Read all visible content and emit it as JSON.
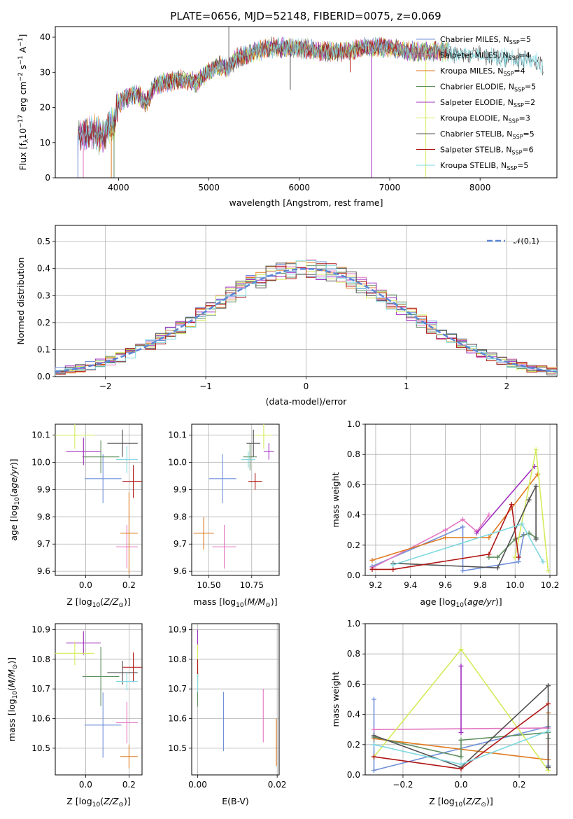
{
  "figure": {
    "title": "PLATE=0656, MJD=52148, FIBERID=0075, z=0.069"
  },
  "colors": {
    "chabrier_miles": "#6f8fd8",
    "salpeter_miles": "#e377c2",
    "kroupa_miles": "#e07a20",
    "chabrier_elodie": "#5e8f5e",
    "salpeter_elodie": "#a02fc0",
    "kroupa_elodie": "#d4ea5a",
    "chabrier_stelib": "#505050",
    "salpeter_stelib": "#b01515",
    "kroupa_stelib": "#80d8e0",
    "normal_curve": "#5b86d6"
  },
  "chart_data": [
    {
      "id": "spectrum",
      "type": "line",
      "xlabel": "wavelength [Angstrom, rest frame]",
      "ylabel": "Flux [f_λ10^-17 erg cm^-2 s^-1 A^-1]",
      "xlim": [
        3300,
        8850
      ],
      "ylim": [
        0,
        43
      ],
      "xticks": [
        "4000",
        "5000",
        "6000",
        "7000",
        "8000"
      ],
      "yticks": [
        "0",
        "10",
        "20",
        "30",
        "40"
      ],
      "legend_position": "top-right",
      "series": [
        {
          "name": "Chabrier MILES, N",
          "sub": "SSP",
          "suffix": "=5",
          "color_key": "chabrier_miles"
        },
        {
          "name": "Salpeter MILES, N",
          "sub": "SSP",
          "suffix": "=4",
          "color_key": "salpeter_miles"
        },
        {
          "name": "Kroupa MILES, N",
          "sub": "SSP",
          "suffix": "=4",
          "color_key": "kroupa_miles"
        },
        {
          "name": "Chabrier ELODIE, N",
          "sub": "SSP",
          "suffix": "=5",
          "color_key": "chabrier_elodie"
        },
        {
          "name": "Salpeter ELODIE, N",
          "sub": "SSP",
          "suffix": "=2",
          "color_key": "salpeter_elodie"
        },
        {
          "name": "Kroupa ELODIE, N",
          "sub": "SSP",
          "suffix": "=3",
          "color_key": "kroupa_elodie"
        },
        {
          "name": "Chabrier STELIB, N",
          "sub": "SSP",
          "suffix": "=5",
          "color_key": "chabrier_stelib"
        },
        {
          "name": "Salpeter STELIB, N",
          "sub": "SSP",
          "suffix": "=6",
          "color_key": "salpeter_stelib"
        },
        {
          "name": "Kroupa STELIB, N",
          "sub": "SSP",
          "suffix": "=5",
          "color_key": "kroupa_stelib"
        }
      ],
      "continuum": [
        [
          3550,
          12
        ],
        [
          3700,
          13
        ],
        [
          3850,
          12
        ],
        [
          3950,
          16
        ],
        [
          4000,
          21
        ],
        [
          4100,
          23
        ],
        [
          4200,
          24
        ],
        [
          4300,
          21
        ],
        [
          4400,
          26
        ],
        [
          4500,
          27
        ],
        [
          4700,
          28
        ],
        [
          4860,
          27
        ],
        [
          5000,
          30
        ],
        [
          5100,
          32
        ],
        [
          5200,
          31
        ],
        [
          5300,
          34
        ],
        [
          5500,
          36
        ],
        [
          5700,
          37
        ],
        [
          5900,
          37
        ],
        [
          6000,
          37
        ],
        [
          6200,
          36
        ],
        [
          6400,
          36
        ],
        [
          6563,
          36
        ],
        [
          6700,
          37
        ],
        [
          7000,
          37
        ],
        [
          7200,
          36
        ],
        [
          7400,
          36
        ],
        [
          7600,
          36
        ],
        [
          7800,
          35
        ],
        [
          8000,
          35
        ],
        [
          8200,
          34
        ],
        [
          8400,
          34
        ],
        [
          8600,
          33
        ],
        [
          8700,
          32
        ]
      ],
      "starts": [
        3550,
        3550,
        3550,
        3550,
        3550,
        3900,
        3550,
        3550,
        3550
      ],
      "ends": [
        7650,
        7650,
        7650,
        7650,
        7650,
        7650,
        8700,
        7650,
        8700
      ],
      "drops": [
        {
          "x": 3550,
          "to": 0
        },
        {
          "x": 3610,
          "to": 0
        },
        {
          "x": 3920,
          "to": 0
        },
        {
          "x": 3950,
          "to": 0
        },
        {
          "x": 6800,
          "to": 0
        },
        {
          "x": 7400,
          "to": 0
        },
        {
          "x": 5900,
          "to": 25
        },
        {
          "x": 6563,
          "to": 30
        }
      ],
      "spike": {
        "x": 5220,
        "to": 43
      }
    },
    {
      "id": "residuals",
      "type": "bar",
      "xlabel": "(data-model)/error",
      "ylabel": "Normed distribution",
      "xlim": [
        -2.5,
        2.5
      ],
      "ylim": [
        0,
        0.56
      ],
      "xticks": [
        -2,
        -1,
        0,
        1,
        2
      ],
      "xtick_labels": [
        "−2",
        "−1",
        "0",
        "1",
        "2"
      ],
      "yticks": [
        "0.0",
        "0.1",
        "0.2",
        "0.3",
        "0.4",
        "0.5"
      ],
      "bin_width": 0.1,
      "legend_label": "𝒩(0,1)",
      "legend_position": "top-right"
    },
    {
      "id": "age_vs_Z",
      "type": "scatter",
      "xlabel": "Z [log₁₀(Z/Z☉)]",
      "ylabel": "age [log₁₀(age/yr)]",
      "xlim": [
        -0.14,
        0.26
      ],
      "ylim": [
        9.585,
        10.14
      ],
      "xticks": [
        "0.0",
        "0.2"
      ],
      "yticks": [
        "9.6",
        "9.7",
        "9.8",
        "9.9",
        "10.0",
        "10.1"
      ],
      "points": [
        {
          "x": 0.08,
          "xerr": 0.085,
          "y": 9.94,
          "yerr": 0.09,
          "color_key": "chabrier_miles"
        },
        {
          "x": 0.19,
          "xerr": 0.05,
          "y": 9.69,
          "yerr": 0.08,
          "color_key": "salpeter_miles"
        },
        {
          "x": 0.2,
          "xerr": 0.04,
          "y": 9.74,
          "yerr": 0.15,
          "color_key": "kroupa_miles"
        },
        {
          "x": 0.07,
          "xerr": 0.085,
          "y": 10.02,
          "yerr": 0.06,
          "color_key": "chabrier_elodie"
        },
        {
          "x": -0.01,
          "xerr": 0.08,
          "y": 10.04,
          "yerr": 0.05,
          "color_key": "salpeter_elodie"
        },
        {
          "x": -0.05,
          "xerr": 0.09,
          "y": 10.1,
          "yerr": 0.05,
          "color_key": "kroupa_elodie"
        },
        {
          "x": 0.17,
          "xerr": 0.07,
          "y": 10.07,
          "yerr": 0.05,
          "color_key": "chabrier_stelib"
        },
        {
          "x": 0.22,
          "xerr": 0.05,
          "y": 9.93,
          "yerr": 0.06,
          "color_key": "salpeter_stelib"
        },
        {
          "x": 0.19,
          "xerr": 0.05,
          "y": 10.01,
          "yerr": 0.05,
          "color_key": "kroupa_stelib"
        }
      ]
    },
    {
      "id": "age_vs_mass",
      "type": "scatter",
      "xlabel": "mass [log₁₀(M/M☉)]",
      "ylabel": "",
      "xlim": [
        10.4,
        10.91
      ],
      "ylim": [
        9.585,
        10.14
      ],
      "xticks": [
        "10.50",
        "10.75"
      ],
      "yticks": [
        "9.6",
        "9.7",
        "9.8",
        "9.9",
        "10.0",
        "10.1"
      ],
      "points": [
        {
          "x": 10.58,
          "xerr": 0.08,
          "y": 9.94,
          "yerr": 0.09,
          "color_key": "chabrier_miles"
        },
        {
          "x": 10.59,
          "xerr": 0.07,
          "y": 9.69,
          "yerr": 0.08,
          "color_key": "salpeter_miles"
        },
        {
          "x": 10.47,
          "xerr": 0.06,
          "y": 9.74,
          "yerr": 0.06,
          "color_key": "kroupa_miles"
        },
        {
          "x": 10.74,
          "xerr": 0.04,
          "y": 10.02,
          "yerr": 0.05,
          "color_key": "chabrier_elodie"
        },
        {
          "x": 10.85,
          "xerr": 0.03,
          "y": 10.04,
          "yerr": 0.03,
          "color_key": "salpeter_elodie"
        },
        {
          "x": 10.82,
          "xerr": 0.05,
          "y": 10.1,
          "yerr": 0.05,
          "color_key": "kroupa_elodie"
        },
        {
          "x": 10.76,
          "xerr": 0.04,
          "y": 10.07,
          "yerr": 0.05,
          "color_key": "chabrier_stelib"
        },
        {
          "x": 10.77,
          "xerr": 0.04,
          "y": 9.93,
          "yerr": 0.03,
          "color_key": "salpeter_stelib"
        },
        {
          "x": 10.73,
          "xerr": 0.04,
          "y": 10.01,
          "yerr": 0.03,
          "color_key": "kroupa_stelib"
        }
      ]
    },
    {
      "id": "weight_vs_age",
      "type": "line",
      "xlabel": "age [log₁₀(age/yr)]",
      "ylabel": "mass weight",
      "xlim": [
        9.14,
        10.24
      ],
      "ylim": [
        0,
        1
      ],
      "xticks": [
        "9.2",
        "9.4",
        "9.6",
        "9.8",
        "10.0",
        "10.2"
      ],
      "yticks": [
        "0.0",
        "0.2",
        "0.4",
        "0.6",
        "0.8",
        "1.0"
      ],
      "series": [
        {
          "color_key": "chabrier_miles",
          "x": [
            9.18,
            9.7,
            9.7,
            10.02,
            10.05
          ],
          "y": [
            0.06,
            0.32,
            0.03,
            0.09,
            0.27
          ]
        },
        {
          "color_key": "salpeter_miles",
          "x": [
            9.18,
            9.6,
            9.7,
            9.78,
            9.85
          ],
          "y": [
            0.05,
            0.3,
            0.37,
            0.29,
            0.4
          ]
        },
        {
          "color_key": "kroupa_miles",
          "x": [
            9.18,
            9.6,
            9.85,
            10.13
          ],
          "y": [
            0.1,
            0.25,
            0.25,
            0.67
          ]
        },
        {
          "color_key": "chabrier_elodie",
          "x": [
            9.85,
            9.9,
            10.0,
            10.08,
            10.12
          ],
          "y": [
            0.12,
            0.12,
            0.24,
            0.28,
            0.25
          ]
        },
        {
          "color_key": "salpeter_elodie",
          "x": [
            9.78,
            10.11
          ],
          "y": [
            0.28,
            0.72
          ]
        },
        {
          "color_key": "kroupa_elodie",
          "x": [
            10.0,
            10.12,
            10.19
          ],
          "y": [
            0.12,
            0.83,
            0.03
          ]
        },
        {
          "color_key": "chabrier_stelib",
          "x": [
            9.3,
            9.9,
            10.08,
            10.12,
            10.12
          ],
          "y": [
            0.08,
            0.05,
            0.5,
            0.59,
            0.24
          ]
        },
        {
          "color_key": "salpeter_stelib",
          "x": [
            9.18,
            9.3,
            9.85,
            9.98,
            10.02
          ],
          "y": [
            0.04,
            0.04,
            0.14,
            0.47,
            0.12
          ]
        },
        {
          "color_key": "kroupa_stelib",
          "x": [
            9.3,
            10.04,
            10.16
          ],
          "y": [
            0.07,
            0.34,
            0.09
          ]
        }
      ]
    },
    {
      "id": "mass_vs_Z",
      "type": "scatter",
      "xlabel": "Z [log₁₀(Z/Z☉)]",
      "ylabel": "mass [log₁₀(M/M☉)]",
      "xlim": [
        -0.14,
        0.26
      ],
      "ylim": [
        10.41,
        10.92
      ],
      "xticks": [
        "0.0",
        "0.2"
      ],
      "yticks": [
        "10.5",
        "10.6",
        "10.7",
        "10.8",
        "10.9"
      ],
      "points": [
        {
          "x": 0.08,
          "xerr": 0.085,
          "y": 10.578,
          "yerr": 0.11,
          "color_key": "chabrier_miles"
        },
        {
          "x": 0.19,
          "xerr": 0.05,
          "y": 10.586,
          "yerr": 0.07,
          "color_key": "salpeter_miles"
        },
        {
          "x": 0.2,
          "xerr": 0.04,
          "y": 10.472,
          "yerr": 0.04,
          "color_key": "kroupa_miles"
        },
        {
          "x": 0.07,
          "xerr": 0.085,
          "y": 10.742,
          "yerr": 0.1,
          "color_key": "chabrier_elodie"
        },
        {
          "x": -0.01,
          "xerr": 0.08,
          "y": 10.855,
          "yerr": 0.04,
          "color_key": "salpeter_elodie"
        },
        {
          "x": -0.05,
          "xerr": 0.09,
          "y": 10.82,
          "yerr": 0.04,
          "color_key": "kroupa_elodie"
        },
        {
          "x": 0.17,
          "xerr": 0.07,
          "y": 10.755,
          "yerr": 0.04,
          "color_key": "chabrier_stelib"
        },
        {
          "x": 0.22,
          "xerr": 0.05,
          "y": 10.773,
          "yerr": 0.05,
          "color_key": "salpeter_stelib"
        },
        {
          "x": 0.19,
          "xerr": 0.05,
          "y": 10.725,
          "yerr": 0.03,
          "color_key": "kroupa_stelib"
        }
      ]
    },
    {
      "id": "mass_vs_ebv",
      "type": "scatter",
      "xlabel": "E(B-V)",
      "ylabel": "",
      "xlim": [
        -0.0015,
        0.0205
      ],
      "ylim": [
        10.41,
        10.92
      ],
      "xticks": [
        "0.00",
        "0.02"
      ],
      "yticks": [
        "10.5",
        "10.6",
        "10.7",
        "10.8",
        "10.9"
      ],
      "points": [
        {
          "x": 0.0065,
          "xerr": 0,
          "y": 10.59,
          "yerr": 0.1,
          "color_key": "chabrier_miles"
        },
        {
          "x": 0.0165,
          "xerr": 0,
          "y": 10.61,
          "yerr": 0.09,
          "color_key": "salpeter_miles"
        },
        {
          "x": 0.0198,
          "xerr": 0,
          "y": 10.52,
          "yerr": 0.08,
          "color_key": "kroupa_miles"
        },
        {
          "x": 0.0,
          "xerr": 0,
          "y": 10.7,
          "yerr": 0.06,
          "color_key": "chabrier_elodie"
        },
        {
          "x": 0.0,
          "xerr": 0,
          "y": 10.86,
          "yerr": 0.04,
          "color_key": "salpeter_elodie"
        },
        {
          "x": 0.0,
          "xerr": 0,
          "y": 10.8,
          "yerr": 0.05,
          "color_key": "kroupa_elodie"
        },
        {
          "x": 0.0,
          "xerr": 0,
          "y": 10.75,
          "yerr": 0.03,
          "color_key": "chabrier_stelib"
        },
        {
          "x": 0.0,
          "xerr": 0,
          "y": 10.77,
          "yerr": 0.03,
          "color_key": "salpeter_stelib"
        },
        {
          "x": 0.0,
          "xerr": 0,
          "y": 10.72,
          "yerr": 0.03,
          "color_key": "kroupa_stelib"
        }
      ]
    },
    {
      "id": "weight_vs_Z",
      "type": "line",
      "xlabel": "Z [log₁₀(Z/Z☉)]",
      "ylabel": "mass weight",
      "xlim": [
        -0.33,
        0.33
      ],
      "ylim": [
        0,
        1
      ],
      "xticks": [
        -0.2,
        0.0,
        0.2
      ],
      "xtick_labels": [
        "−0.2",
        "0.0",
        "0.2"
      ],
      "yticks": [
        "0.0",
        "0.2",
        "0.4",
        "0.6",
        "0.8",
        "1.0"
      ],
      "series": [
        {
          "color_key": "chabrier_miles",
          "x": [
            -0.3,
            -0.3,
            0.3,
            0.3
          ],
          "y": [
            0.5,
            0.03,
            0.32,
            0.06
          ]
        },
        {
          "color_key": "salpeter_miles",
          "x": [
            -0.3,
            0.3,
            0.3
          ],
          "y": [
            0.3,
            0.31,
            0.05
          ]
        },
        {
          "color_key": "kroupa_miles",
          "x": [
            -0.3,
            0.3,
            0.3
          ],
          "y": [
            0.24,
            0.1,
            0.41
          ]
        },
        {
          "color_key": "chabrier_elodie",
          "x": [
            -0.3,
            0.0,
            0.0,
            0.3,
            0.3
          ],
          "y": [
            0.25,
            0.12,
            0.23,
            0.28,
            0.24
          ]
        },
        {
          "color_key": "salpeter_elodie",
          "x": [
            0.0,
            0.0
          ],
          "y": [
            0.72,
            0.28
          ]
        },
        {
          "color_key": "kroupa_elodie",
          "x": [
            -0.3,
            0.0,
            0.3
          ],
          "y": [
            0.12,
            0.83,
            0.03
          ]
        },
        {
          "color_key": "chabrier_stelib",
          "x": [
            -0.3,
            0.0,
            0.3,
            0.3
          ],
          "y": [
            0.26,
            0.05,
            0.59,
            0.05
          ]
        },
        {
          "color_key": "salpeter_stelib",
          "x": [
            -0.3,
            0.0,
            0.3
          ],
          "y": [
            0.12,
            0.04,
            0.47
          ]
        },
        {
          "color_key": "kroupa_stelib",
          "x": [
            -0.3,
            0.0,
            0.3
          ],
          "y": [
            0.2,
            0.07,
            0.29
          ]
        }
      ]
    }
  ]
}
